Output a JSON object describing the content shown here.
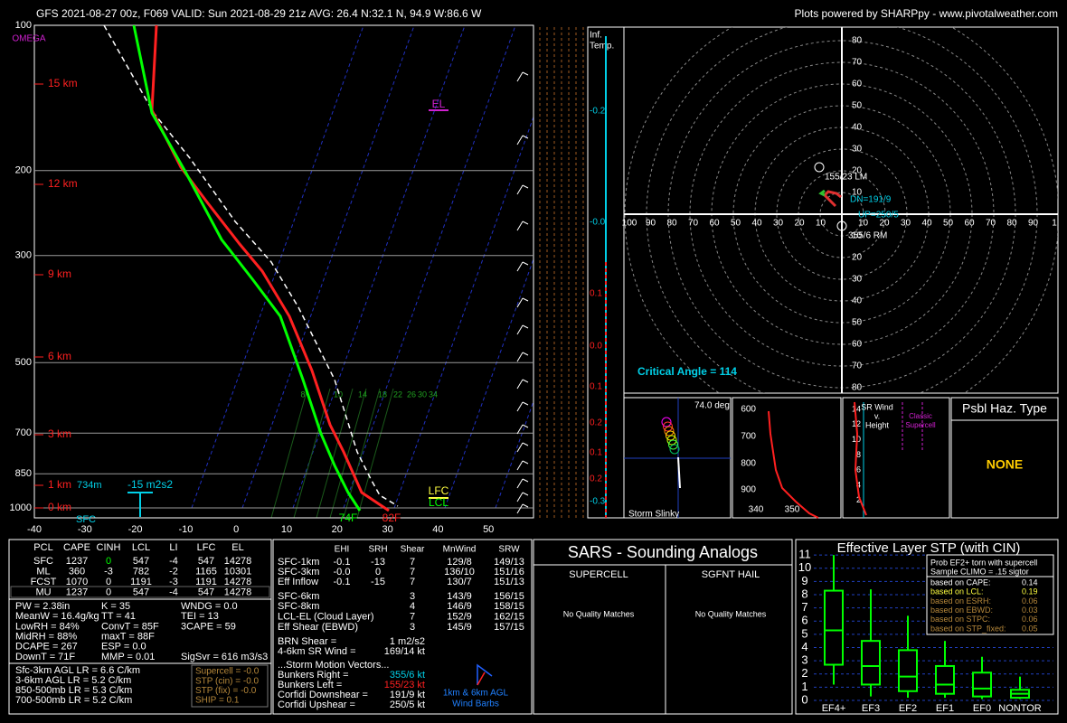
{
  "header": {
    "left": "GFS 2021-08-27 00z, F069  VALID: Sun 2021-08-29 21z  AVG: 26.4 N:32.1 N, 94.9 W:86.6 W",
    "right": "Plots powered by SHARPpy - www.pivotalweather.com"
  },
  "skewt": {
    "omega": "OMEGA",
    "pressures": [
      "100",
      "200",
      "300",
      "500",
      "700",
      "850",
      "1000"
    ],
    "heights": [
      "15 km",
      "12 km",
      "9 km",
      "6 km",
      "3 km",
      "1 km",
      "0 km"
    ],
    "temperatures": [
      "-40",
      "-30",
      "-20",
      "-10",
      "0",
      "10",
      "20",
      "30",
      "40",
      "50"
    ],
    "mixing_ratios": [
      "8",
      "10",
      "14",
      "18",
      "22",
      "26",
      "30",
      "34"
    ],
    "sfc": "SFC",
    "sfc_dewpoint": "74F",
    "sfc_temperature": "82F",
    "lfc": "LFC",
    "lcl": "LCL",
    "el": "EL",
    "eff_inflow_depth": "734m",
    "eff_srh": "-15 m2s2"
  },
  "inferred_temp": {
    "title": [
      "Inf.",
      "Temp."
    ],
    "values": [
      "-0.2",
      "-0.0",
      "0.1",
      "0.0",
      "0.1",
      "0.2",
      "0.1",
      "0.2",
      "-0.3"
    ]
  },
  "hodograph": {
    "y_up": [
      "80",
      "70",
      "60",
      "50",
      "40",
      "30",
      "20",
      "10"
    ],
    "y_down": [
      "10",
      "20",
      "30",
      "40",
      "50",
      "60",
      "70",
      "80"
    ],
    "x_left": [
      "100",
      "90",
      "80",
      "70",
      "60",
      "50",
      "40",
      "30",
      "20",
      "10"
    ],
    "x_right": [
      "10",
      "20",
      "30",
      "40",
      "50",
      "60",
      "70",
      "80",
      "90",
      "1"
    ],
    "lm": "155/23 LM",
    "rm": "355/6 RM",
    "dn": "DN=191/9",
    "up": "UP=250/5",
    "critical_angle": "Critical Angle = 114"
  },
  "slinky": {
    "angle": "74.0 deg",
    "title": "Storm Slinky"
  },
  "theta_e": {
    "pressures": [
      "600",
      "700",
      "800",
      "900"
    ],
    "temps": [
      "340",
      "350"
    ]
  },
  "sr_wind": {
    "title": [
      "SR Wind",
      "v.",
      "Height"
    ],
    "heights": [
      "14",
      "12",
      "10",
      "8",
      "6",
      "4",
      "2"
    ],
    "annotation": [
      "Classic",
      "Supercell"
    ]
  },
  "hazard": {
    "title": "Psbl Haz. Type",
    "value": "NONE"
  },
  "parcels": {
    "header": [
      "PCL",
      "CAPE",
      "CINH",
      "LCL",
      "LI",
      "LFC",
      "EL"
    ],
    "rows": [
      [
        "SFC",
        "1237",
        "0",
        "547",
        "-4",
        "547",
        "14278"
      ],
      [
        "ML",
        "360",
        "-3",
        "782",
        "-2",
        "1165",
        "10301"
      ],
      [
        "FCST",
        "1070",
        "0",
        "1191",
        "-3",
        "1191",
        "14278"
      ],
      [
        "MU",
        "1237",
        "0",
        "547",
        "-4",
        "547",
        "14278"
      ]
    ]
  },
  "indices": {
    "col1": [
      "PW = 2.38in",
      "MeanW = 16.4g/kg",
      "LowRH = 84%",
      "MidRH = 88%",
      "DCAPE = 267",
      "DownT = 71F"
    ],
    "col2": [
      "K = 35",
      "TT = 41",
      "ConvT = 85F",
      "maxT = 88F",
      "ESP = 0.0",
      "MMP = 0.01"
    ],
    "col3": [
      "WNDG = 0.0",
      "TEI = 13",
      "3CAPE = 59"
    ],
    "sigsvr": "SigSvr = 616 m3/s3"
  },
  "lapse_rates": [
    "Sfc-3km AGL LR = 6.6 C/km",
    "3-6km AGL LR = 5.2 C/km",
    "850-500mb LR = 5.3 C/km",
    "700-500mb LR = 5.2 C/km"
  ],
  "composite": [
    "Supercell = -0.0",
    "STP (cin) = -0.0",
    "STP (fix) = -0.0",
    "SHIP = 0.1"
  ],
  "kinematics": {
    "header": [
      "EHI",
      "SRH",
      "Shear",
      "MnWind",
      "SRW"
    ],
    "rows": [
      [
        "SFC-1km",
        "-0.1",
        "-13",
        "7",
        "129/8",
        "149/13"
      ],
      [
        "SFC-3km",
        "-0.0",
        "0",
        "7",
        "136/10",
        "151/16"
      ],
      [
        "Eff Inflow",
        "-0.1",
        "-15",
        "7",
        "130/7",
        "151/13"
      ]
    ],
    "rows2": [
      [
        "SFC-6km",
        "3",
        "143/9",
        "156/15"
      ],
      [
        "SFC-8km",
        "4",
        "146/9",
        "158/15"
      ],
      [
        "LCL-EL (Cloud Layer)",
        "7",
        "152/9",
        "162/15"
      ],
      [
        "Eff Shear (EBWD)",
        "3",
        "145/9",
        "157/15"
      ]
    ],
    "brn": [
      "BRN Shear =",
      "1 m2/s2"
    ],
    "sr_wind": [
      "4-6km SR Wind =",
      "169/14 kt"
    ],
    "storm_title": "...Storm Motion Vectors...",
    "storm": [
      [
        "Bunkers Right =",
        "355/6 kt"
      ],
      [
        "Bunkers Left =",
        "155/23 kt"
      ],
      [
        "Corfidi Downshear =",
        "191/9 kt"
      ],
      [
        "Corfidi Upshear =",
        "250/5 kt"
      ]
    ],
    "barbs": [
      "1km & 6km AGL",
      "Wind Barbs"
    ]
  },
  "sars": {
    "title": "SARS - Sounding Analogs",
    "supercell": "SUPERCELL",
    "hail": "SGFNT HAIL",
    "supercell_result": "No Quality Matches",
    "hail_result": "No Quality Matches"
  },
  "stp": {
    "title": "Effective Layer STP (with CIN)",
    "yticks": [
      0,
      1,
      2,
      3,
      4,
      5,
      6,
      7,
      8,
      9,
      10,
      11
    ],
    "categories": [
      "EF4+",
      "EF3",
      "EF2",
      "EF1",
      "EF0",
      "NONTOR"
    ],
    "boxes": [
      [
        1.2,
        2.7,
        5.3,
        8.3,
        11
      ],
      [
        0.3,
        1.2,
        2.6,
        4.5,
        8.4
      ],
      [
        0.2,
        0.7,
        1.8,
        3.8,
        6.4
      ],
      [
        0.2,
        0.5,
        1.2,
        2.6,
        4.5
      ],
      [
        0.1,
        0.3,
        0.9,
        2.1,
        3.3
      ],
      [
        0.1,
        0.2,
        0.5,
        0.8,
        1.8
      ]
    ],
    "prob": {
      "title": [
        "Prob EF2+ torn with supercell",
        "Sample CLIMO = .15 sigtor"
      ],
      "rows": [
        [
          "based on CAPE:",
          "0.14"
        ],
        [
          "based on LCL:",
          "0.19"
        ],
        [
          "based on ESRH:",
          "0.06"
        ],
        [
          "based on EBWD:",
          "0.03"
        ],
        [
          "based on STPC:",
          "0.06"
        ],
        [
          "based on STP_fixed:",
          "0.05"
        ]
      ]
    }
  }
}
